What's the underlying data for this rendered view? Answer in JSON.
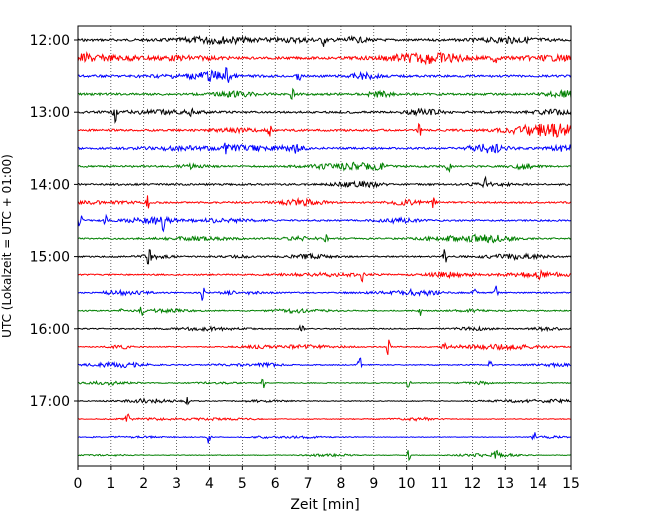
{
  "chart_data": {
    "type": "line",
    "xlabel": "Zeit  [min]",
    "ylabel": "UTC (Lokalzeit = UTC + 01:00)",
    "xlim": [
      0,
      15
    ],
    "x_ticks": [
      "0",
      "1",
      "2",
      "3",
      "4",
      "5",
      "6",
      "7",
      "8",
      "9",
      "10",
      "11",
      "12",
      "13",
      "14",
      "15"
    ],
    "y_ticks": [
      "12:00",
      "13:00",
      "14:00",
      "15:00",
      "16:00",
      "17:00"
    ],
    "grid": "vertical-dotted",
    "traces_per_hour": 4,
    "trace_start_times": [
      "12:00",
      "12:15",
      "12:30",
      "12:45",
      "13:00",
      "13:15",
      "13:30",
      "13:45",
      "14:00",
      "14:15",
      "14:30",
      "14:45",
      "15:00",
      "15:15",
      "15:30",
      "15:45",
      "16:00",
      "16:15",
      "16:30",
      "16:45",
      "17:00",
      "17:15",
      "17:30",
      "17:45"
    ],
    "trace_colors": [
      "#000000",
      "#ff0000",
      "#0000ff",
      "#008000"
    ]
  }
}
